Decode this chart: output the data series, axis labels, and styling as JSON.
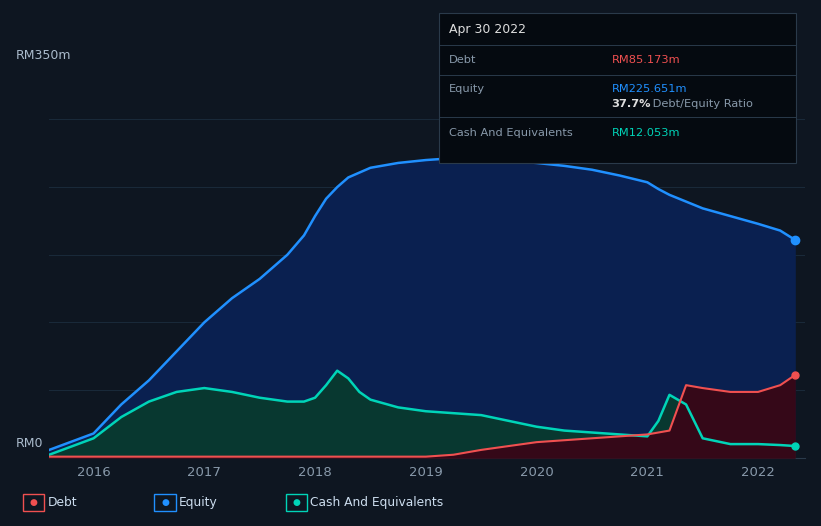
{
  "bg_color": "#0e1621",
  "plot_bg_color": "#0e1621",
  "tooltip": {
    "date": "Apr 30 2022",
    "debt_label": "Debt",
    "debt_value": "RM85.173m",
    "equity_label": "Equity",
    "equity_value": "RM225.651m",
    "ratio_bold": "37.7%",
    "ratio_rest": " Debt/Equity Ratio",
    "cash_label": "Cash And Equivalents",
    "cash_value": "RM12.053m"
  },
  "y_label_top": "RM350m",
  "y_label_bottom": "RM0",
  "x_ticks": [
    "2016",
    "2017",
    "2018",
    "2019",
    "2020",
    "2021",
    "2022"
  ],
  "y_max": 350,
  "colors": {
    "debt": "#f05050",
    "equity": "#2090ff",
    "cash": "#00d4b8",
    "equity_fill": "#0a2050",
    "cash_fill": "#083830",
    "debt_fill": "#350818"
  },
  "legend": [
    {
      "label": "Debt",
      "color": "#f05050"
    },
    {
      "label": "Equity",
      "color": "#2090ff"
    },
    {
      "label": "Cash And Equivalents",
      "color": "#00d4b8"
    }
  ],
  "x_data": [
    2015.6,
    2016.0,
    2016.25,
    2016.5,
    2016.75,
    2017.0,
    2017.25,
    2017.5,
    2017.75,
    2017.9,
    2018.0,
    2018.1,
    2018.2,
    2018.3,
    2018.4,
    2018.5,
    2018.75,
    2019.0,
    2019.25,
    2019.5,
    2019.75,
    2020.0,
    2020.25,
    2020.5,
    2020.75,
    2021.0,
    2021.1,
    2021.2,
    2021.35,
    2021.5,
    2021.75,
    2022.0,
    2022.2,
    2022.33
  ],
  "equity_data": [
    8,
    25,
    55,
    80,
    110,
    140,
    165,
    185,
    210,
    230,
    250,
    268,
    280,
    290,
    295,
    300,
    305,
    308,
    310,
    309,
    307,
    305,
    302,
    298,
    292,
    285,
    278,
    272,
    265,
    258,
    250,
    242,
    235,
    225.651
  ],
  "cash_data": [
    3,
    20,
    42,
    58,
    68,
    72,
    68,
    62,
    58,
    58,
    62,
    75,
    90,
    82,
    68,
    60,
    52,
    48,
    46,
    44,
    38,
    32,
    28,
    26,
    24,
    22,
    38,
    65,
    55,
    20,
    14,
    14,
    13,
    12.053
  ],
  "debt_data": [
    1,
    1,
    1,
    1,
    1,
    1,
    1,
    1,
    1,
    1,
    1,
    1,
    1,
    1,
    1,
    1,
    1,
    1,
    3,
    8,
    12,
    16,
    18,
    20,
    22,
    24,
    26,
    28,
    75,
    72,
    68,
    68,
    75,
    85.173
  ]
}
